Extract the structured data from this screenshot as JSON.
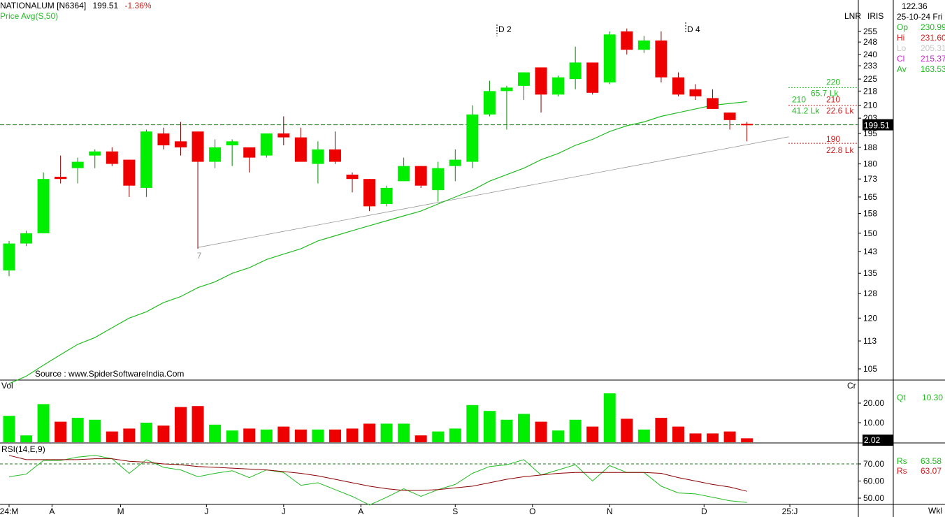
{
  "header": {
    "symbol": "NATIONALUM [N6364]",
    "last": "199.51",
    "change": "-1.36%",
    "indicator": "Price  Avg(S,50)",
    "source": "Source : www.SpiderSoftwareIndia.Com",
    "scale_mode": "LNR",
    "iris": "IRIS",
    "period": "Wkl"
  },
  "info_panel": {
    "top_value": "122.36",
    "date": "25-10-24 Fri",
    "rows": [
      {
        "label": "Op",
        "value": "230.99",
        "color": "#22bb22"
      },
      {
        "label": "Hi",
        "value": "231.60",
        "color": "#cc2222"
      },
      {
        "label": "Lo",
        "value": "205.31",
        "color": "#c8c8c8"
      },
      {
        "label": "Cl",
        "value": "215.37",
        "color": "#cc22cc"
      },
      {
        "label": "Av",
        "value": "163.53",
        "color": "#22bb22"
      }
    ],
    "qt_label": "Qt",
    "qt_value": "10.30",
    "rsi_rows": [
      {
        "label": "Rs",
        "value": "63.58",
        "color": "#22bb22"
      },
      {
        "label": "Rs",
        "value": "63.07",
        "color": "#cc2222"
      }
    ]
  },
  "annotations": {
    "d2": "D 2",
    "d4": "D 4",
    "wave7": "7",
    "t220": "220",
    "t657": "65.7 Lk",
    "t210a": "210",
    "t210b": "210",
    "t412": "41.2 Lk",
    "t226": "22.6 Lk",
    "t190": "190",
    "t228": "22.8 Lk",
    "price_tag": "199.51",
    "vol_tag": "2.02"
  },
  "chart_data": [
    {
      "type": "candlestick",
      "title": "NATIONALUM [N6364]",
      "price_axis_ticks": [
        105,
        113,
        120,
        128,
        135,
        143,
        150,
        158,
        165,
        173,
        180,
        188,
        195,
        203,
        210,
        218,
        225,
        233,
        240,
        248,
        255
      ],
      "x_tick_labels": [
        "24:M",
        "A",
        "M",
        "J",
        "J",
        "A",
        "S",
        "O",
        "N",
        "D",
        "25:J"
      ],
      "ylim": [
        100,
        260
      ],
      "current_price_line": 199.51,
      "candles": [
        {
          "o": 136,
          "h": 147,
          "l": 134,
          "c": 146
        },
        {
          "o": 146,
          "h": 151,
          "l": 145,
          "c": 150
        },
        {
          "o": 150,
          "h": 176,
          "l": 150,
          "c": 173
        },
        {
          "o": 174,
          "h": 184,
          "l": 171,
          "c": 173
        },
        {
          "o": 178,
          "h": 183,
          "l": 171,
          "c": 181
        },
        {
          "o": 184,
          "h": 187,
          "l": 178,
          "c": 186
        },
        {
          "o": 186,
          "h": 188,
          "l": 179,
          "c": 180
        },
        {
          "o": 182,
          "h": 182,
          "l": 165,
          "c": 170
        },
        {
          "o": 169,
          "h": 197,
          "l": 165,
          "c": 196
        },
        {
          "o": 195,
          "h": 198,
          "l": 187,
          "c": 189
        },
        {
          "o": 191,
          "h": 201,
          "l": 184,
          "c": 188
        },
        {
          "o": 196,
          "h": 196,
          "l": 144,
          "c": 181
        },
        {
          "o": 181,
          "h": 192,
          "l": 178,
          "c": 188
        },
        {
          "o": 189,
          "h": 192,
          "l": 179,
          "c": 191
        },
        {
          "o": 188,
          "h": 188,
          "l": 176,
          "c": 183
        },
        {
          "o": 184,
          "h": 195,
          "l": 183,
          "c": 195
        },
        {
          "o": 195,
          "h": 204,
          "l": 189,
          "c": 193
        },
        {
          "o": 193,
          "h": 198,
          "l": 182,
          "c": 181
        },
        {
          "o": 180,
          "h": 191,
          "l": 171,
          "c": 187
        },
        {
          "o": 187,
          "h": 196,
          "l": 180,
          "c": 181
        },
        {
          "o": 175,
          "h": 176,
          "l": 167,
          "c": 173
        },
        {
          "o": 173,
          "h": 173,
          "l": 159,
          "c": 161
        },
        {
          "o": 162,
          "h": 170,
          "l": 161,
          "c": 169
        },
        {
          "o": 172,
          "h": 183,
          "l": 172,
          "c": 179
        },
        {
          "o": 179,
          "h": 179,
          "l": 169,
          "c": 170
        },
        {
          "o": 168,
          "h": 181,
          "l": 163,
          "c": 178
        },
        {
          "o": 179,
          "h": 187,
          "l": 172,
          "c": 182
        },
        {
          "o": 181,
          "h": 210,
          "l": 178,
          "c": 205
        },
        {
          "o": 205,
          "h": 224,
          "l": 204,
          "c": 218
        },
        {
          "o": 218,
          "h": 221,
          "l": 197,
          "c": 220
        },
        {
          "o": 221,
          "h": 229,
          "l": 213,
          "c": 229
        },
        {
          "o": 232,
          "h": 232,
          "l": 206,
          "c": 216
        },
        {
          "o": 216,
          "h": 227,
          "l": 215,
          "c": 226
        },
        {
          "o": 225,
          "h": 245,
          "l": 219,
          "c": 235
        },
        {
          "o": 235,
          "h": 235,
          "l": 216,
          "c": 217
        },
        {
          "o": 223,
          "h": 255,
          "l": 222,
          "c": 253
        },
        {
          "o": 255,
          "h": 257,
          "l": 240,
          "c": 243
        },
        {
          "o": 243,
          "h": 252,
          "l": 241,
          "c": 249
        },
        {
          "o": 249,
          "h": 255,
          "l": 223,
          "c": 226
        },
        {
          "o": 226,
          "h": 229,
          "l": 215,
          "c": 216
        },
        {
          "o": 219,
          "h": 222,
          "l": 213,
          "c": 215
        },
        {
          "o": 214,
          "h": 219,
          "l": 208,
          "c": 208
        },
        {
          "o": 206,
          "h": 206,
          "l": 197,
          "c": 202
        },
        {
          "o": 200,
          "h": 201,
          "l": 191,
          "c": 199.51
        }
      ],
      "sma50": [
        101,
        103,
        106,
        109,
        112,
        114,
        117,
        120,
        122,
        125,
        127,
        130,
        132,
        135,
        137,
        140,
        142,
        144,
        147,
        149,
        151,
        153,
        155,
        157,
        159,
        162,
        165,
        168,
        172,
        175,
        178,
        182,
        185,
        189,
        192,
        196,
        199,
        201,
        204,
        206,
        208,
        210,
        211,
        212
      ],
      "trendline": {
        "from_candle": 11,
        "from_price": 144.5,
        "to_candle": 43,
        "to_price": 191.5
      },
      "target_levels": [
        {
          "price": 220,
          "label": "220"
        },
        {
          "price": 210,
          "label": "210"
        },
        {
          "price": 190,
          "label": "190"
        }
      ]
    },
    {
      "type": "bar",
      "title": "Vol",
      "unit": "Cr",
      "axis_ticks": [
        10.0,
        20.0
      ],
      "ylim": [
        0,
        26
      ],
      "values": [
        13.5,
        3.5,
        19.5,
        10.5,
        12.5,
        11.5,
        5.5,
        7.0,
        10.0,
        8.5,
        18.0,
        18.5,
        9.0,
        6.0,
        7.0,
        6.5,
        8.0,
        6.5,
        6.5,
        6.5,
        7.0,
        9.5,
        9.5,
        9.5,
        3.5,
        5.5,
        7.0,
        19.0,
        16.0,
        11.5,
        14.5,
        10.5,
        6.0,
        11.5,
        8.0,
        25.0,
        12.0,
        6.5,
        12.5,
        8.0,
        4.5,
        4.5,
        5.5,
        2.02
      ]
    },
    {
      "type": "line",
      "title": "RSI(14,E,9)",
      "axis_ticks": [
        50.0,
        60.0,
        70.0
      ],
      "ylim": [
        45,
        78
      ],
      "reference_line": 70,
      "series": [
        {
          "name": "Rs",
          "color": "#22bb22",
          "values": [
            62.5,
            64.0,
            72.0,
            72.0,
            74.0,
            75.0,
            73.0,
            64.5,
            72.5,
            68.0,
            66.5,
            62.5,
            64.5,
            66.0,
            62.0,
            66.5,
            65.0,
            57.5,
            59.0,
            55.0,
            51.0,
            46.0,
            50.5,
            55.5,
            51.0,
            55.0,
            58.0,
            64.5,
            68.5,
            69.5,
            72.5,
            63.5,
            66.5,
            69.5,
            60.0,
            69.0,
            65.0,
            65.0,
            57.0,
            53.0,
            52.5,
            50.5,
            48.5,
            47.5
          ]
        },
        {
          "name": "Rs",
          "color": "#8b0000",
          "values": [
            75.0,
            72.5,
            72.5,
            72.5,
            72.5,
            73.0,
            73.0,
            71.5,
            71.0,
            70.0,
            69.5,
            68.5,
            68.0,
            67.5,
            67.0,
            66.5,
            65.5,
            64.5,
            63.0,
            61.0,
            59.0,
            57.0,
            55.5,
            54.5,
            54.5,
            55.0,
            56.0,
            57.0,
            59.0,
            61.0,
            62.5,
            63.5,
            64.5,
            65.0,
            65.0,
            65.0,
            65.0,
            65.0,
            64.5,
            62.0,
            60.0,
            58.0,
            56.5,
            54.0
          ]
        }
      ]
    }
  ]
}
